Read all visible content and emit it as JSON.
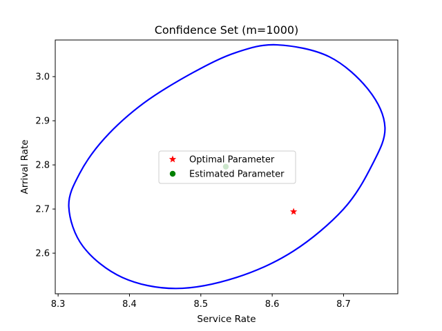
{
  "chart_data": {
    "type": "scatter",
    "title": "Confidence Set (m=1000)",
    "xlabel": "Service Rate",
    "ylabel": "Arrival Rate",
    "xlim": [
      8.296,
      8.776
    ],
    "ylim": [
      2.508,
      3.083
    ],
    "xticks": [
      {
        "value": 8.3,
        "label": "8.3"
      },
      {
        "value": 8.4,
        "label": "8.4"
      },
      {
        "value": 8.5,
        "label": "8.5"
      },
      {
        "value": 8.6,
        "label": "8.6"
      },
      {
        "value": 8.7,
        "label": "8.7"
      }
    ],
    "yticks": [
      {
        "value": 2.6,
        "label": "2.6"
      },
      {
        "value": 2.7,
        "label": "2.7"
      },
      {
        "value": 2.8,
        "label": "2.8"
      },
      {
        "value": 2.9,
        "label": "2.9"
      },
      {
        "value": 3.0,
        "label": "3.0"
      }
    ],
    "grid": false,
    "legend_position": "center-left",
    "series": [
      {
        "name": "Optimal Parameter",
        "marker": "star",
        "color": "#ff0000",
        "points": [
          {
            "x": 8.63,
            "y": 2.694
          }
        ]
      },
      {
        "name": "Estimated Parameter",
        "marker": "circle",
        "color": "#008000",
        "points": [
          {
            "x": 8.535,
            "y": 2.796
          }
        ]
      }
    ],
    "confidence_region": {
      "shape": "ellipse",
      "color": "#0000ff",
      "boundary": [
        [
          8.315,
          2.705
        ],
        [
          8.33,
          2.78
        ],
        [
          8.365,
          2.86
        ],
        [
          8.42,
          2.94
        ],
        [
          8.49,
          3.01
        ],
        [
          8.55,
          3.055
        ],
        [
          8.607,
          3.072
        ],
        [
          8.68,
          3.045
        ],
        [
          8.735,
          2.97
        ],
        [
          8.758,
          2.885
        ],
        [
          8.74,
          2.8
        ],
        [
          8.7,
          2.7
        ],
        [
          8.63,
          2.605
        ],
        [
          8.55,
          2.545
        ],
        [
          8.465,
          2.52
        ],
        [
          8.39,
          2.545
        ],
        [
          8.335,
          2.615
        ]
      ]
    }
  }
}
